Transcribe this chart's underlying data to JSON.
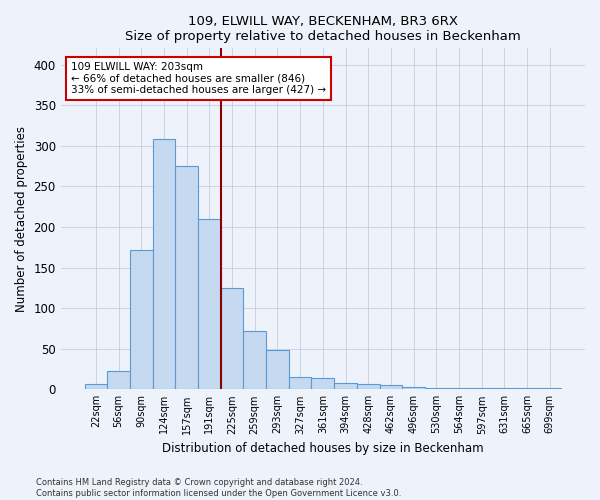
{
  "title": "109, ELWILL WAY, BECKENHAM, BR3 6RX",
  "subtitle": "Size of property relative to detached houses in Beckenham",
  "xlabel": "Distribution of detached houses by size in Beckenham",
  "ylabel": "Number of detached properties",
  "bar_labels": [
    "22sqm",
    "56sqm",
    "90sqm",
    "124sqm",
    "157sqm",
    "191sqm",
    "225sqm",
    "259sqm",
    "293sqm",
    "327sqm",
    "361sqm",
    "394sqm",
    "428sqm",
    "462sqm",
    "496sqm",
    "530sqm",
    "564sqm",
    "597sqm",
    "631sqm",
    "665sqm",
    "699sqm"
  ],
  "bar_values": [
    7,
    22,
    172,
    308,
    275,
    210,
    125,
    72,
    49,
    15,
    14,
    8,
    7,
    5,
    3,
    2,
    1,
    1,
    1,
    1,
    1
  ],
  "bar_color": "#c5d9f0",
  "bar_edge_color": "#5b9bd5",
  "line_color": "#8b0000",
  "annotation_line0": "109 ELWILL WAY: 203sqm",
  "annotation_line1": "← 66% of detached houses are smaller (846)",
  "annotation_line2": "33% of semi-detached houses are larger (427) →",
  "annotation_box_color": "#ffffff",
  "annotation_box_edge": "#cc0000",
  "ylim": [
    0,
    420
  ],
  "yticks": [
    0,
    50,
    100,
    150,
    200,
    250,
    300,
    350,
    400
  ],
  "footer1": "Contains HM Land Registry data © Crown copyright and database right 2024.",
  "footer2": "Contains public sector information licensed under the Open Government Licence v3.0.",
  "bg_color": "#eef2fb",
  "plot_bg_color": "#eef2fb"
}
